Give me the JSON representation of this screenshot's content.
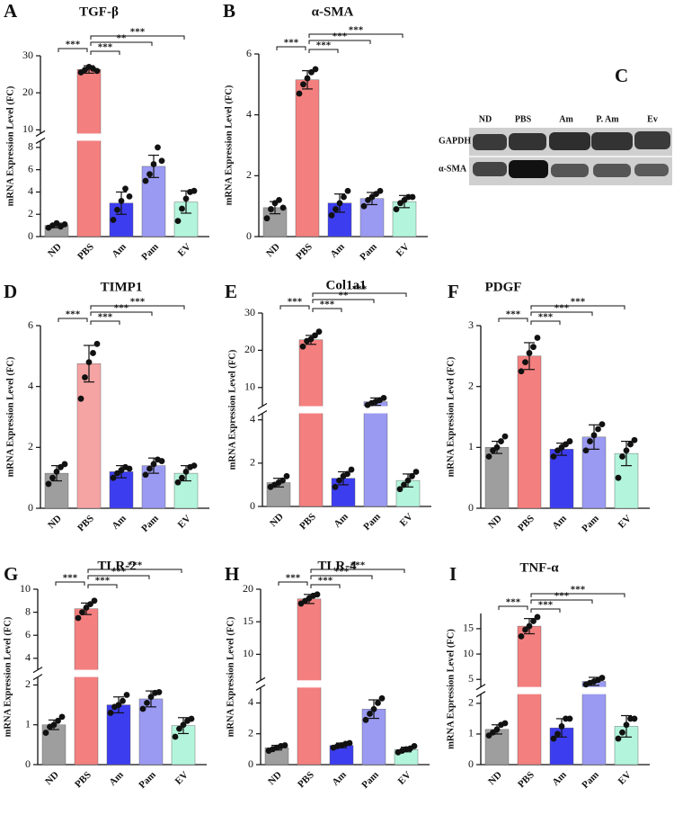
{
  "chart_data": [
    {
      "type": "bar",
      "panel": "A",
      "title": "TGF-β",
      "y_label": "mRNA Expression Level (FC)",
      "categories": [
        "ND",
        "PBS",
        "Am",
        "Pam",
        "EV"
      ],
      "values": [
        1.0,
        26.3,
        3.0,
        6.3,
        3.1
      ],
      "errors": [
        0.2,
        1.0,
        1.0,
        1.0,
        1.0
      ],
      "points": [
        [
          0.8,
          1.0,
          1.2,
          0.9,
          1.1
        ],
        [
          25.5,
          26.2,
          27.0,
          26.5,
          25.9
        ],
        [
          1.5,
          2.4,
          3.2,
          4.3,
          3.6
        ],
        [
          5.0,
          5.6,
          6.5,
          8.0,
          6.8
        ],
        [
          1.4,
          2.5,
          3.4,
          4.0,
          4.1
        ]
      ],
      "colors": [
        "#9e9e9e",
        "#f47f7f",
        "#3d3df0",
        "#9a9af2",
        "#b3f5dc"
      ],
      "significance": [
        "***",
        null,
        "***",
        "**",
        "***"
      ],
      "ylim": [
        0,
        30
      ],
      "ybreak": [
        8.6,
        9
      ],
      "yticks": [
        0,
        2,
        4,
        6,
        8,
        10,
        20,
        30
      ]
    },
    {
      "type": "bar",
      "panel": "B",
      "title": "α-SMA",
      "y_label": "mRNA Expression Level (FC)",
      "categories": [
        "ND",
        "PBS",
        "Am",
        "Pam",
        "EV"
      ],
      "values": [
        0.95,
        5.15,
        1.1,
        1.25,
        1.15
      ],
      "errors": [
        0.2,
        0.3,
        0.3,
        0.2,
        0.2
      ],
      "points": [
        [
          0.6,
          0.9,
          1.1,
          1.2,
          0.95
        ],
        [
          4.7,
          5.0,
          5.2,
          5.4,
          5.5
        ],
        [
          0.7,
          0.9,
          1.1,
          1.3,
          1.5
        ],
        [
          1.0,
          1.2,
          1.3,
          1.4,
          1.5
        ],
        [
          0.9,
          1.1,
          1.2,
          1.3,
          1.3
        ]
      ],
      "colors": [
        "#9e9e9e",
        "#f47f7f",
        "#3d3df0",
        "#9a9af2",
        "#b3f5dc"
      ],
      "significance": [
        "***",
        null,
        "***",
        "***",
        "***"
      ],
      "ylim": [
        0,
        6
      ],
      "yticks": [
        0,
        2,
        4,
        6
      ]
    },
    {
      "type": "bar",
      "panel": "D",
      "title": "TIMP1",
      "y_label": "mRNA Expression Level (FC)",
      "categories": [
        "ND",
        "PBS",
        "Am",
        "Pam",
        "EV"
      ],
      "values": [
        1.15,
        4.75,
        1.2,
        1.4,
        1.15
      ],
      "errors": [
        0.25,
        0.6,
        0.2,
        0.25,
        0.25
      ],
      "points": [
        [
          0.8,
          1.0,
          1.2,
          1.35,
          1.45
        ],
        [
          3.6,
          4.3,
          4.8,
          5.1,
          5.4
        ],
        [
          1.0,
          1.15,
          1.25,
          1.35,
          1.3
        ],
        [
          1.1,
          1.3,
          1.45,
          1.6,
          1.55
        ],
        [
          0.85,
          1.0,
          1.2,
          1.35,
          1.4
        ]
      ],
      "colors": [
        "#9e9e9e",
        "#f5a3a3",
        "#3d3df0",
        "#9a9af2",
        "#b3f5dc"
      ],
      "significance": [
        "***",
        null,
        "***",
        "***",
        "***"
      ],
      "ylim": [
        0,
        6
      ],
      "yticks": [
        0,
        2,
        4,
        6
      ]
    },
    {
      "type": "bar",
      "panel": "E",
      "title": "Col1a1",
      "y_label": "mRNA Expression Level (FC)",
      "categories": [
        "ND",
        "PBS",
        "Am",
        "Pam",
        "EV"
      ],
      "values": [
        1.1,
        22.8,
        1.3,
        6.2,
        1.2
      ],
      "errors": [
        0.2,
        1.2,
        0.3,
        1.0,
        0.3
      ],
      "points": [
        [
          0.9,
          1.0,
          1.1,
          1.2,
          1.4
        ],
        [
          21.0,
          22.5,
          23.0,
          24.0,
          25.0
        ],
        [
          0.9,
          1.2,
          1.4,
          1.5,
          1.7
        ],
        [
          5.3,
          5.8,
          6.2,
          6.6,
          7.2
        ],
        [
          0.8,
          1.0,
          1.2,
          1.4,
          1.6
        ]
      ],
      "colors": [
        "#9e9e9e",
        "#f47f7f",
        "#3d3df0",
        "#9a9af2",
        "#b3f5dc"
      ],
      "significance": [
        "***",
        null,
        "***",
        "**",
        "***"
      ],
      "ylim": [
        0,
        30
      ],
      "ybreak": [
        4.3,
        5
      ],
      "yticks": [
        0,
        2,
        4,
        10,
        20,
        30
      ]
    },
    {
      "type": "bar",
      "panel": "F",
      "title": "PDGF",
      "y_label": "mRNA Expression Level (FC)",
      "categories": [
        "ND",
        "PBS",
        "Am",
        "Pam",
        "EV"
      ],
      "values": [
        1.0,
        2.5,
        0.97,
        1.17,
        0.9
      ],
      "errors": [
        0.1,
        0.22,
        0.1,
        0.2,
        0.2
      ],
      "points": [
        [
          0.85,
          0.95,
          1.0,
          1.1,
          1.18
        ],
        [
          2.25,
          2.4,
          2.55,
          2.65,
          2.8
        ],
        [
          0.85,
          0.95,
          1.0,
          1.05,
          1.1
        ],
        [
          0.95,
          1.1,
          1.2,
          1.3,
          1.38
        ],
        [
          0.5,
          0.85,
          0.95,
          1.05,
          1.12
        ]
      ],
      "colors": [
        "#9e9e9e",
        "#f47f7f",
        "#3d3df0",
        "#9a9af2",
        "#b3f5dc"
      ],
      "significance": [
        "***",
        null,
        "***",
        "***",
        "***"
      ],
      "ylim": [
        0,
        3
      ],
      "yticks": [
        0,
        1,
        2,
        3
      ]
    },
    {
      "type": "bar",
      "panel": "G",
      "title": "TLR-2",
      "y_label": "mRNA Expression Level (FC)",
      "categories": [
        "ND",
        "PBS",
        "Am",
        "Pam",
        "EV"
      ],
      "values": [
        1.0,
        8.3,
        1.5,
        1.65,
        0.98
      ],
      "errors": [
        0.12,
        0.5,
        0.2,
        0.2,
        0.2
      ],
      "points": [
        [
          0.8,
          0.95,
          1.0,
          1.1,
          1.2
        ],
        [
          7.5,
          8.0,
          8.4,
          8.7,
          9.0
        ],
        [
          1.3,
          1.45,
          1.5,
          1.6,
          1.75
        ],
        [
          1.4,
          1.55,
          1.7,
          1.8,
          1.82
        ],
        [
          0.7,
          0.9,
          1.0,
          1.1,
          1.15
        ]
      ],
      "colors": [
        "#9e9e9e",
        "#f47f7f",
        "#3d3df0",
        "#9a9af2",
        "#b3f5dc"
      ],
      "significance": [
        "***",
        null,
        "***",
        "***",
        "***"
      ],
      "ylim": [
        0,
        10
      ],
      "ybreak": [
        2.2,
        3
      ],
      "yticks": [
        0,
        1,
        2,
        4,
        6,
        8,
        10
      ]
    },
    {
      "type": "bar",
      "panel": "H",
      "title": "TLR-4",
      "y_label": "mRNA Expression Level (FC)",
      "categories": [
        "ND",
        "PBS",
        "Am",
        "Pam",
        "EV"
      ],
      "values": [
        1.1,
        18.5,
        1.25,
        3.6,
        0.98
      ],
      "errors": [
        0.15,
        0.7,
        0.15,
        0.6,
        0.15
      ],
      "points": [
        [
          0.9,
          1.0,
          1.1,
          1.2,
          1.25
        ],
        [
          17.8,
          18.2,
          18.6,
          19.0,
          19.2
        ],
        [
          1.1,
          1.2,
          1.25,
          1.35,
          1.4
        ],
        [
          2.9,
          3.3,
          3.6,
          4.0,
          4.3
        ],
        [
          0.8,
          0.9,
          1.0,
          1.05,
          1.2
        ]
      ],
      "colors": [
        "#9e9e9e",
        "#f47f7f",
        "#3d3df0",
        "#9a9af2",
        "#b3f5dc"
      ],
      "significance": [
        "***",
        null,
        "***",
        "***",
        "***"
      ],
      "ylim": [
        0,
        20
      ],
      "ybreak": [
        5,
        6
      ],
      "yticks": [
        0,
        2,
        4,
        10,
        15,
        20
      ]
    },
    {
      "type": "bar",
      "panel": "I",
      "title": "TNF-α",
      "y_label": "mRNA Expression Level (FC)",
      "categories": [
        "ND",
        "PBS",
        "Am",
        "Pam",
        "EV"
      ],
      "values": [
        1.15,
        15.5,
        1.2,
        4.6,
        1.25
      ],
      "errors": [
        0.15,
        1.5,
        0.3,
        0.8,
        0.35
      ],
      "points": [
        [
          0.95,
          1.05,
          1.15,
          1.3,
          1.35
        ],
        [
          13.5,
          14.8,
          15.5,
          16.5,
          17.3
        ],
        [
          0.85,
          1.0,
          1.25,
          1.5,
          1.5
        ],
        [
          4.0,
          4.3,
          4.6,
          4.9,
          5.3
        ],
        [
          0.85,
          1.05,
          1.3,
          1.5,
          1.5
        ]
      ],
      "colors": [
        "#9e9e9e",
        "#f47f7f",
        "#3d3df0",
        "#9a9af2",
        "#b3f5dc"
      ],
      "significance": [
        "***",
        null,
        "***",
        "***",
        "***"
      ],
      "ylim": [
        0,
        18
      ],
      "ybreak": [
        2.3,
        3.5
      ],
      "yticks": [
        0,
        1,
        2,
        5,
        10,
        15
      ]
    }
  ],
  "blot": {
    "panel": "C",
    "lanes": [
      "ND",
      "PBS",
      "Am",
      "P. Am",
      "Ev"
    ],
    "rows": [
      "GAPDH",
      "α-SMA"
    ]
  }
}
